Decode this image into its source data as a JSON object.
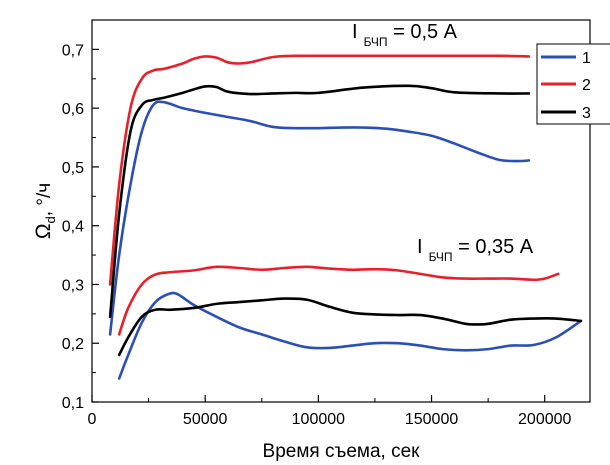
{
  "chart_data": {
    "type": "line",
    "xlabel": "Время съема, сек",
    "ylabel_main": "Ω",
    "ylabel_sub": "d",
    "ylabel_tail": ", °/ч",
    "xlim": [
      0,
      220000
    ],
    "ylim": [
      0.1,
      0.75
    ],
    "xticks": [
      0,
      50000,
      100000,
      150000,
      200000
    ],
    "yticks": [
      0.1,
      0.2,
      0.3,
      0.4,
      0.5,
      0.6,
      0.7
    ],
    "ytick_labels": [
      "0,1",
      "0,2",
      "0,3",
      "0,4",
      "0,5",
      "0,6",
      "0,7"
    ],
    "grid": false,
    "legend_position": "top-right",
    "annotations": [
      {
        "main": "I",
        "sub": "БЧП",
        "tail": " = 0,5 A"
      },
      {
        "main": "I",
        "sub": "БЧП",
        "tail": " = 0,35 A"
      }
    ],
    "series": [
      {
        "name": "1",
        "color": "#2b4fb8",
        "group": "0.5A",
        "x": [
          8000,
          12000,
          17000,
          22000,
          27000,
          32000,
          40000,
          50000,
          60000,
          70000,
          80000,
          90000,
          100000,
          110000,
          120000,
          130000,
          140000,
          150000,
          160000,
          170000,
          180000,
          188000,
          193000
        ],
        "y": [
          0.215,
          0.35,
          0.47,
          0.56,
          0.605,
          0.61,
          0.6,
          0.592,
          0.585,
          0.578,
          0.568,
          0.566,
          0.566,
          0.567,
          0.567,
          0.565,
          0.56,
          0.553,
          0.54,
          0.525,
          0.512,
          0.51,
          0.511
        ]
      },
      {
        "name": "2",
        "color": "#e8202a",
        "group": "0.5A",
        "x": [
          8000,
          12000,
          17000,
          22000,
          27000,
          32000,
          40000,
          45000,
          50000,
          55000,
          60000,
          65000,
          70000,
          80000,
          90000,
          100000,
          120000,
          140000,
          160000,
          180000,
          193000
        ],
        "y": [
          0.3,
          0.47,
          0.6,
          0.65,
          0.664,
          0.667,
          0.676,
          0.684,
          0.688,
          0.686,
          0.678,
          0.676,
          0.678,
          0.687,
          0.689,
          0.689,
          0.689,
          0.689,
          0.689,
          0.689,
          0.688
        ]
      },
      {
        "name": "3",
        "color": "#000000",
        "group": "0.5A",
        "x": [
          8000,
          12000,
          17000,
          22000,
          27000,
          32000,
          40000,
          45000,
          50000,
          55000,
          60000,
          70000,
          80000,
          90000,
          100000,
          120000,
          140000,
          150000,
          160000,
          180000,
          193000
        ],
        "y": [
          0.245,
          0.42,
          0.56,
          0.605,
          0.614,
          0.618,
          0.626,
          0.632,
          0.637,
          0.636,
          0.628,
          0.624,
          0.625,
          0.626,
          0.626,
          0.635,
          0.638,
          0.634,
          0.627,
          0.625,
          0.625
        ]
      },
      {
        "name": "",
        "color": "#2b4fb8",
        "group": "0.35A",
        "x": [
          12000,
          16000,
          22000,
          28000,
          34000,
          38000,
          45000,
          55000,
          65000,
          75000,
          85000,
          95000,
          105000,
          115000,
          125000,
          135000,
          145000,
          155000,
          165000,
          175000,
          185000,
          195000,
          205000,
          216000
        ],
        "y": [
          0.14,
          0.18,
          0.235,
          0.27,
          0.284,
          0.283,
          0.265,
          0.245,
          0.227,
          0.215,
          0.203,
          0.193,
          0.192,
          0.196,
          0.2,
          0.2,
          0.196,
          0.19,
          0.188,
          0.19,
          0.196,
          0.197,
          0.21,
          0.238
        ]
      },
      {
        "name": "",
        "color": "#e8202a",
        "group": "0.35A",
        "x": [
          12000,
          16000,
          22000,
          28000,
          35000,
          45000,
          55000,
          65000,
          75000,
          85000,
          95000,
          105000,
          115000,
          125000,
          135000,
          145000,
          155000,
          165000,
          175000,
          185000,
          195000,
          200000,
          206000
        ],
        "y": [
          0.215,
          0.26,
          0.3,
          0.317,
          0.321,
          0.324,
          0.33,
          0.328,
          0.325,
          0.328,
          0.33,
          0.327,
          0.325,
          0.326,
          0.324,
          0.318,
          0.312,
          0.31,
          0.31,
          0.31,
          0.308,
          0.31,
          0.318
        ]
      },
      {
        "name": "",
        "color": "#000000",
        "group": "0.35A",
        "x": [
          12000,
          16000,
          22000,
          28000,
          35000,
          45000,
          55000,
          65000,
          75000,
          85000,
          95000,
          105000,
          115000,
          125000,
          135000,
          145000,
          155000,
          165000,
          170000,
          175000,
          185000,
          195000,
          205000,
          216000
        ],
        "y": [
          0.18,
          0.21,
          0.245,
          0.257,
          0.257,
          0.26,
          0.267,
          0.27,
          0.273,
          0.276,
          0.274,
          0.262,
          0.252,
          0.249,
          0.248,
          0.248,
          0.242,
          0.233,
          0.232,
          0.233,
          0.24,
          0.242,
          0.242,
          0.238
        ]
      }
    ]
  }
}
